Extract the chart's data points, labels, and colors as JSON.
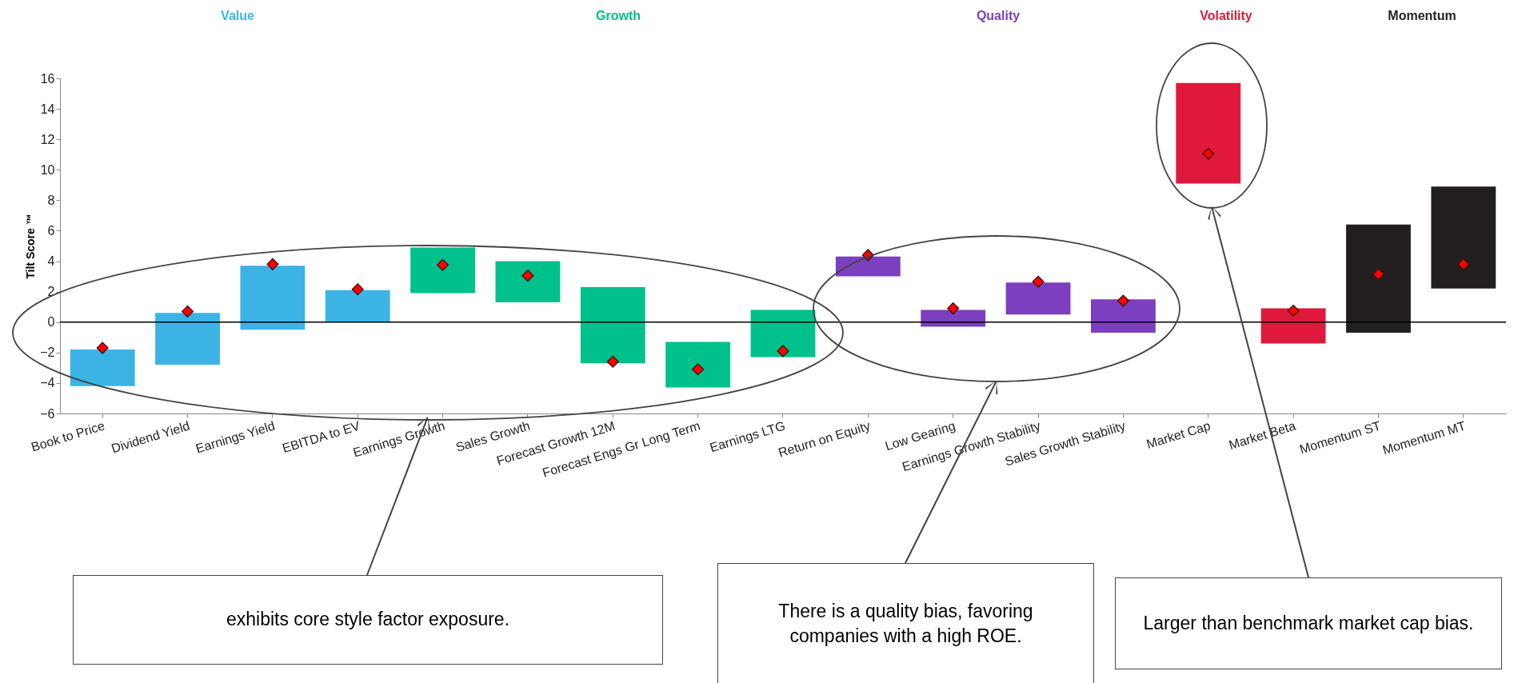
{
  "chart_data": {
    "type": "bar",
    "ylabel": "Tilt Score ™",
    "categories": [
      "Book to Price",
      "Dividend Yield",
      "Earnings Yield",
      "EBITDA to EV",
      "Earnings Growth",
      "Sales Growth",
      "Forecast Growth 12M",
      "Forecast Engs Gr Long Term",
      "Earnings LTG",
      "Return on Equity",
      "Low Gearing",
      "Earnings Growth Stability",
      "Sales Growth Stability",
      "Market Cap",
      "Market Beta",
      "Momentum ST",
      "Momentum MT"
    ],
    "series": [
      {
        "type": "bar",
        "base": [
          -4.2,
          -2.8,
          -0.5,
          0,
          1.9,
          1.3,
          -2.7,
          -4.3,
          -2.3,
          3.0,
          -0.3,
          0.5,
          -0.7,
          9.1,
          -1.4,
          -0.7,
          2.2
        ],
        "values": [
          2.4,
          3.4,
          4.2,
          2.1,
          3.0,
          2.7,
          5.0,
          3.0,
          3.1,
          1.3,
          1.1,
          2.1,
          2.2,
          6.6,
          2.3,
          7.1,
          6.7
        ],
        "colors": [
          "#3bb4e5",
          "#3bb4e5",
          "#3bb4e5",
          "#3bb4e5",
          "#00c08b",
          "#00c08b",
          "#00c08b",
          "#00c08b",
          "#00c08b",
          "#7b3fbf",
          "#7b3fbf",
          "#7b3fbf",
          "#7b3fbf",
          "#e0193c",
          "#e0193c",
          "#231f20",
          "#231f20"
        ]
      },
      {
        "type": "scatter",
        "marker": "diamond",
        "color": "#ff0000",
        "values": [
          -1.7,
          0.7,
          3.8,
          2.15,
          3.75,
          3.05,
          -2.6,
          -3.1,
          -1.9,
          4.4,
          0.9,
          2.65,
          1.4,
          11.05,
          0.75,
          3.15,
          3.8
        ]
      }
    ],
    "ylim": [
      -6,
      16
    ],
    "yticks": [
      -6,
      -4,
      -2,
      0,
      2,
      4,
      6,
      8,
      10,
      12,
      14,
      16
    ],
    "ref_lines": [
      {
        "axis": "y",
        "value": 0,
        "color": "#000000"
      }
    ],
    "annotations": [
      "Value",
      "Growth",
      "Quality",
      "Volatility",
      "Momentum",
      "exhibits core style factor exposure.",
      "There is a quality bias, favoring companies with a high ROE.",
      "Larger than benchmark market cap bias."
    ]
  }
}
